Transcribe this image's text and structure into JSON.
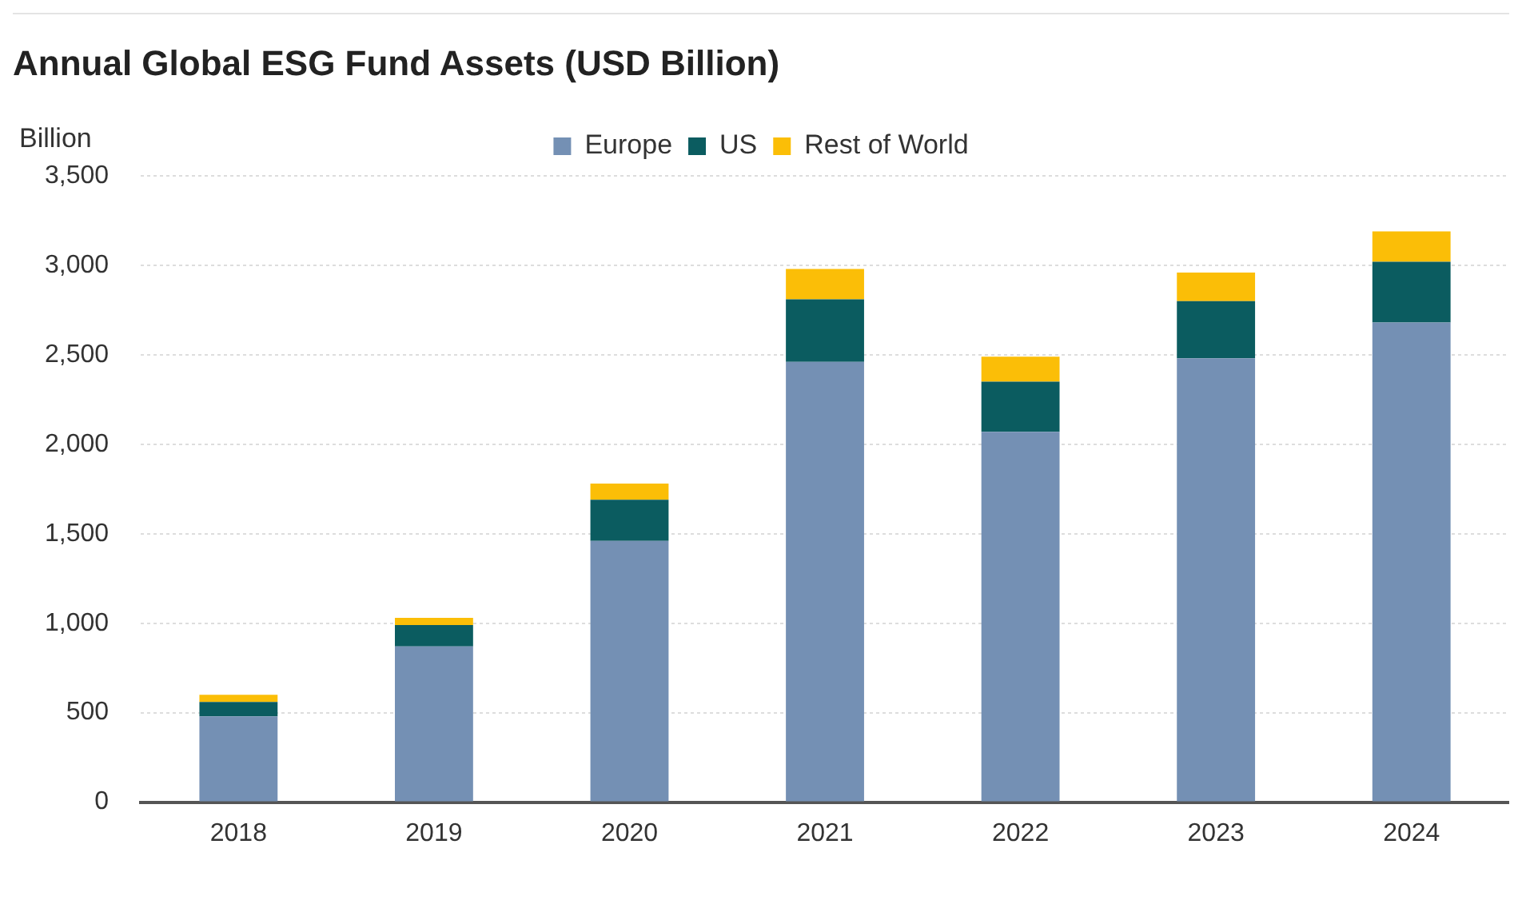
{
  "chart_data": {
    "type": "bar",
    "title": "Annual Global ESG Fund Assets (USD Billion)",
    "ylabel": "Billion",
    "categories": [
      "2018",
      "2019",
      "2020",
      "2021",
      "2022",
      "2023",
      "2024"
    ],
    "stacked": true,
    "series": [
      {
        "name": "Europe",
        "color": "#7490b4",
        "values": [
          480,
          870,
          1460,
          2460,
          2070,
          2480,
          2680
        ]
      },
      {
        "name": "US",
        "color": "#0b5c60",
        "values": [
          80,
          120,
          230,
          350,
          280,
          320,
          340
        ]
      },
      {
        "name": "Rest of World",
        "color": "#fbbe07",
        "values": [
          40,
          40,
          90,
          170,
          140,
          160,
          170
        ]
      }
    ],
    "ylim": [
      0,
      3500
    ],
    "yticks": [
      0,
      500,
      {
        "value": 1000,
        "label": "1,000"
      },
      {
        "value": 1500,
        "label": "1,500"
      },
      {
        "value": 2000,
        "label": "2,000"
      },
      {
        "value": 2500,
        "label": "2,500"
      },
      {
        "value": 3000,
        "label": "3,000"
      },
      {
        "value": 3500,
        "label": "3,500"
      }
    ],
    "grid": "y",
    "legend": "top"
  }
}
